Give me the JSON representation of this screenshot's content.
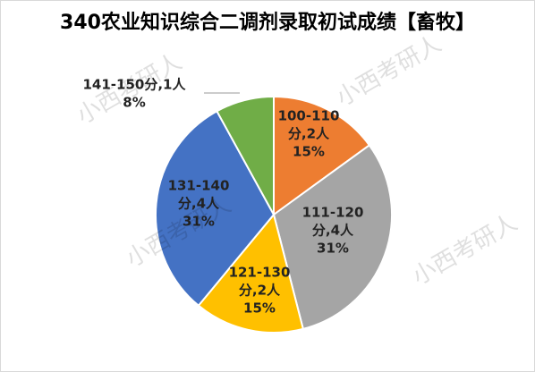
{
  "chart_data": {
    "type": "pie",
    "title": "340农业知识综合二调剂录取初试成绩【畜牧】",
    "label_lines": [
      [
        "100-110",
        "分,2人"
      ],
      [
        "111-120",
        "分,4人"
      ],
      [
        "121-130",
        "分,2人"
      ],
      [
        "131-140",
        "分,4人"
      ],
      [
        "141-150分,1人"
      ]
    ],
    "values": [
      15,
      31,
      15,
      31,
      8
    ],
    "value_labels": [
      "15%",
      "31%",
      "15%",
      "31%",
      "8%"
    ],
    "colors": [
      "#ed7d31",
      "#a5a5a5",
      "#ffc000",
      "#4472c4",
      "#70ad47"
    ]
  },
  "watermarks": [
    "小西考研人",
    "小西考研人",
    "小西考研人",
    "小西考研人"
  ]
}
